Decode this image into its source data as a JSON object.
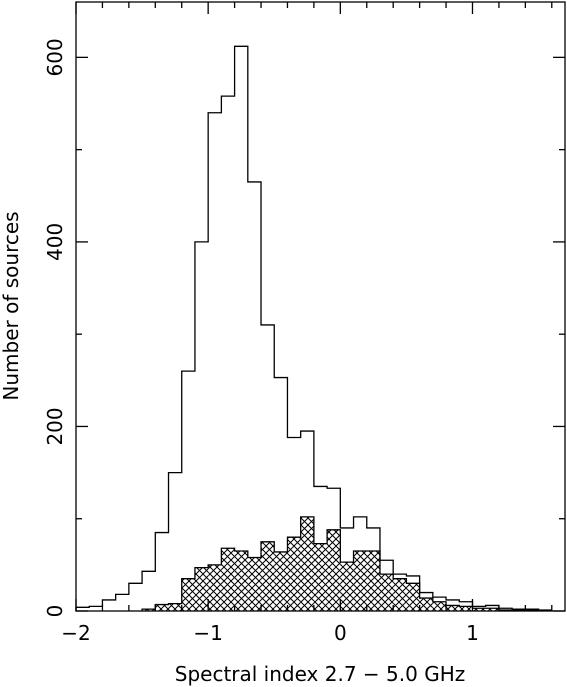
{
  "chart_data": {
    "type": "bar",
    "xlabel": "Spectral index 2.7 − 5.0 GHz",
    "ylabel": "Number of sources",
    "xlim": [
      -2.0,
      1.7
    ],
    "ylim": [
      0,
      660
    ],
    "bin_width": 0.1,
    "x_ticks": [
      {
        "value": -2,
        "label": "−2"
      },
      {
        "value": -1,
        "label": "−1"
      },
      {
        "value": 0,
        "label": "0"
      },
      {
        "value": 1,
        "label": "1"
      }
    ],
    "y_ticks": [
      {
        "value": 0,
        "label": "0"
      },
      {
        "value": 200,
        "label": "200"
      },
      {
        "value": 400,
        "label": "400"
      },
      {
        "value": 600,
        "label": "600"
      }
    ],
    "series": [
      {
        "style": "outline",
        "bin_starts": [
          -2.0,
          -1.9,
          -1.8,
          -1.7,
          -1.6,
          -1.5,
          -1.4,
          -1.3,
          -1.2,
          -1.1,
          -1.0,
          -0.9,
          -0.8,
          -0.7,
          -0.6,
          -0.5,
          -0.4,
          -0.3,
          -0.2,
          -0.1,
          0.0,
          0.1,
          0.2,
          0.3,
          0.4,
          0.5,
          0.6,
          0.7,
          0.8,
          0.9,
          1.0,
          1.1,
          1.2,
          1.3,
          1.4,
          1.5
        ],
        "values": [
          4,
          5,
          12,
          18,
          30,
          43,
          85,
          150,
          260,
          400,
          540,
          558,
          612,
          465,
          310,
          253,
          188,
          195,
          135,
          133,
          90,
          102,
          90,
          55,
          40,
          38,
          20,
          15,
          12,
          10,
          5,
          6,
          3,
          2,
          1,
          1
        ]
      },
      {
        "style": "hatched",
        "bin_starts": [
          -1.5,
          -1.4,
          -1.3,
          -1.2,
          -1.1,
          -1.0,
          -0.9,
          -0.8,
          -0.7,
          -0.6,
          -0.5,
          -0.4,
          -0.3,
          -0.2,
          -0.1,
          0.0,
          0.1,
          0.2,
          0.3,
          0.4,
          0.5,
          0.6,
          0.7,
          0.8,
          0.9,
          1.0,
          1.1,
          1.2,
          1.3,
          1.4
        ],
        "values": [
          2,
          7,
          8,
          35,
          47,
          50,
          68,
          65,
          58,
          75,
          64,
          80,
          102,
          73,
          88,
          53,
          65,
          65,
          40,
          35,
          30,
          14,
          10,
          6,
          5,
          3,
          3,
          1,
          1,
          2
        ]
      }
    ]
  }
}
